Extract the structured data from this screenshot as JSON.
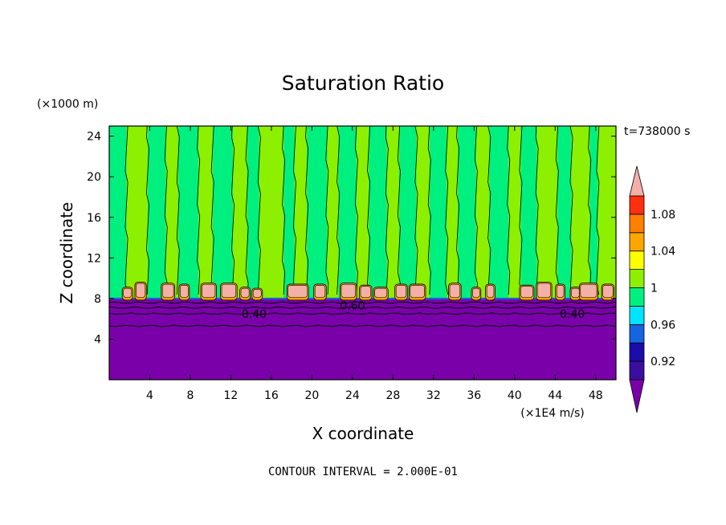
{
  "chart_data": {
    "type": "heatmap",
    "title": "Saturation Ratio",
    "xlabel": "X coordinate",
    "ylabel": "Z coordinate",
    "x_unit": "(×1E4 m/s)",
    "y_unit": "(×1000 m)",
    "time_label": "t=738000 s",
    "footer": "CONTOUR INTERVAL = 2.000E-01",
    "xlim": [
      0,
      50
    ],
    "ylim": [
      0,
      25
    ],
    "x_ticks": [
      4,
      8,
      12,
      16,
      20,
      24,
      28,
      32,
      36,
      40,
      44,
      48
    ],
    "y_ticks": [
      4,
      8,
      12,
      16,
      20,
      24
    ],
    "x_tick_labels": [
      "4",
      "8",
      "12",
      "16",
      "20",
      "24",
      "28",
      "32",
      "36",
      "40",
      "44",
      "48"
    ],
    "y_tick_labels": [
      "4",
      "8",
      "12",
      "16",
      "20",
      "24"
    ],
    "colorbar": {
      "levels": [
        0.9,
        0.92,
        0.94,
        0.96,
        0.98,
        1.0,
        1.02,
        1.04,
        1.06,
        1.08,
        1.1
      ],
      "labels": [
        "0.92",
        "0.96",
        "1",
        "1.04",
        "1.08"
      ],
      "label_values": [
        0.92,
        0.96,
        1.0,
        1.04,
        1.08
      ],
      "colors": [
        "#3a0fa0",
        "#1c0ca8",
        "#1565e0",
        "#00e5ff",
        "#00f080",
        "#8cf000",
        "#ffff00",
        "#ffa500",
        "#ff7f00",
        "#ff3010"
      ],
      "under_color": "#7a00aa",
      "over_color": "#f4b0a8"
    },
    "fields": {
      "stratosphere_color": "#7a00aa",
      "tropopause_height": 8.0,
      "column_colors": [
        "#00f080",
        "#8cf000"
      ],
      "cloud_top_color": "#f4b0a8"
    },
    "lower_contours": [
      {
        "z": 7.6
      },
      {
        "z": 7.1
      },
      {
        "z": 6.5
      },
      {
        "z": 5.3
      }
    ],
    "contour_labels": [
      {
        "text": "0.40",
        "x": 14.3,
        "z": 6.5
      },
      {
        "text": "0.60",
        "x": 24.0,
        "z": 7.3
      },
      {
        "text": "0.40",
        "x": 45.7,
        "z": 6.5
      }
    ],
    "columns": [
      {
        "x0": 0.0,
        "x1": 1.7,
        "c": 0
      },
      {
        "x0": 1.7,
        "x1": 3.8,
        "c": 1
      },
      {
        "x0": 3.8,
        "x1": 5.6,
        "c": 0
      },
      {
        "x0": 5.6,
        "x1": 6.8,
        "c": 1
      },
      {
        "x0": 6.8,
        "x1": 8.8,
        "c": 0
      },
      {
        "x0": 8.8,
        "x1": 10.2,
        "c": 1
      },
      {
        "x0": 10.2,
        "x1": 12.2,
        "c": 0
      },
      {
        "x0": 12.2,
        "x1": 13.6,
        "c": 1
      },
      {
        "x0": 13.6,
        "x1": 14.8,
        "c": 0
      },
      {
        "x0": 14.8,
        "x1": 17.2,
        "c": 1
      },
      {
        "x0": 17.2,
        "x1": 18.3,
        "c": 0
      },
      {
        "x0": 18.3,
        "x1": 19.5,
        "c": 1
      },
      {
        "x0": 19.5,
        "x1": 21.5,
        "c": 0
      },
      {
        "x0": 21.5,
        "x1": 22.6,
        "c": 1
      },
      {
        "x0": 22.6,
        "x1": 24.4,
        "c": 0
      },
      {
        "x0": 24.4,
        "x1": 25.6,
        "c": 1
      },
      {
        "x0": 25.6,
        "x1": 27.4,
        "c": 0
      },
      {
        "x0": 27.4,
        "x1": 28.6,
        "c": 1
      },
      {
        "x0": 28.6,
        "x1": 30.3,
        "c": 0
      },
      {
        "x0": 30.3,
        "x1": 31.6,
        "c": 1
      },
      {
        "x0": 31.6,
        "x1": 33.3,
        "c": 0
      },
      {
        "x0": 33.3,
        "x1": 34.4,
        "c": 1
      },
      {
        "x0": 34.4,
        "x1": 36.2,
        "c": 0
      },
      {
        "x0": 36.2,
        "x1": 37.5,
        "c": 1
      },
      {
        "x0": 37.5,
        "x1": 39.4,
        "c": 0
      },
      {
        "x0": 39.4,
        "x1": 40.6,
        "c": 1
      },
      {
        "x0": 40.6,
        "x1": 42.2,
        "c": 0
      },
      {
        "x0": 42.2,
        "x1": 44.2,
        "c": 1
      },
      {
        "x0": 44.2,
        "x1": 45.6,
        "c": 0
      },
      {
        "x0": 45.6,
        "x1": 47.4,
        "c": 1
      },
      {
        "x0": 47.4,
        "x1": 48.2,
        "c": 0
      },
      {
        "x0": 48.2,
        "x1": 50.0,
        "c": 1
      }
    ],
    "cloud_blobs": [
      {
        "x": 1.8,
        "w": 0.8,
        "h": 1.2
      },
      {
        "x": 3.1,
        "w": 0.9,
        "h": 1.7
      },
      {
        "x": 5.8,
        "w": 1.1,
        "h": 1.6
      },
      {
        "x": 7.4,
        "w": 0.8,
        "h": 1.5
      },
      {
        "x": 9.8,
        "w": 1.3,
        "h": 1.6
      },
      {
        "x": 11.8,
        "w": 1.4,
        "h": 1.6
      },
      {
        "x": 13.4,
        "w": 0.8,
        "h": 1.2
      },
      {
        "x": 14.6,
        "w": 0.8,
        "h": 1.1
      },
      {
        "x": 18.6,
        "w": 1.9,
        "h": 1.5
      },
      {
        "x": 20.8,
        "w": 1.0,
        "h": 1.5
      },
      {
        "x": 23.6,
        "w": 1.4,
        "h": 1.6
      },
      {
        "x": 25.3,
        "w": 1.0,
        "h": 1.4
      },
      {
        "x": 26.8,
        "w": 1.2,
        "h": 1.2
      },
      {
        "x": 28.8,
        "w": 1.0,
        "h": 1.5
      },
      {
        "x": 30.4,
        "w": 1.4,
        "h": 1.5
      },
      {
        "x": 34.1,
        "w": 1.0,
        "h": 1.6
      },
      {
        "x": 36.2,
        "w": 0.7,
        "h": 1.2
      },
      {
        "x": 37.6,
        "w": 0.7,
        "h": 1.5
      },
      {
        "x": 41.2,
        "w": 1.2,
        "h": 1.4
      },
      {
        "x": 42.9,
        "w": 1.3,
        "h": 1.7
      },
      {
        "x": 44.5,
        "w": 0.7,
        "h": 1.5
      },
      {
        "x": 46.0,
        "w": 0.8,
        "h": 1.2
      },
      {
        "x": 47.3,
        "w": 1.6,
        "h": 1.6
      },
      {
        "x": 49.2,
        "w": 1.0,
        "h": 1.5
      }
    ]
  }
}
